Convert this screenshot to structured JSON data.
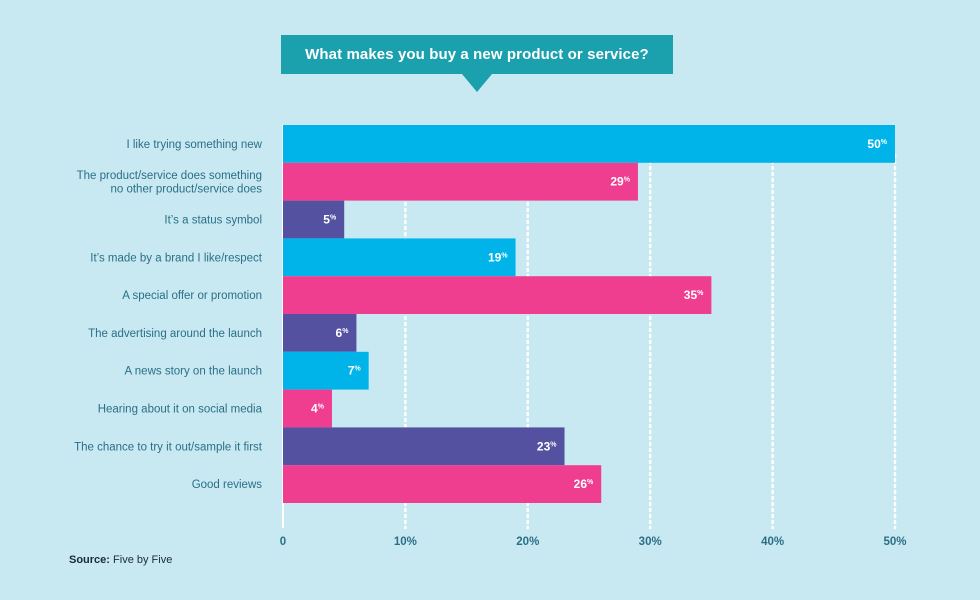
{
  "title": "What makes you buy a new product or service?",
  "source": {
    "label": "Source:",
    "text": "Five by Five"
  },
  "colors": {
    "background": "#c8e9f2",
    "title_bg": "#1ba0ad",
    "axis_text": "#2a6f86",
    "series_blue": "#00b4ea",
    "series_pink": "#ef3e8f",
    "series_purple": "#5451a1",
    "grid": "#ffffff"
  },
  "chart_data": {
    "type": "bar",
    "orientation": "horizontal",
    "categories": [
      "I like trying something new",
      "The product/service does something\nno other product/service does",
      "It’s a status symbol",
      "It’s made by a brand I like/respect",
      "A special offer or promotion",
      "The advertising around the launch",
      "A news story on the launch",
      "Hearing about it on social media",
      "The chance to try it out/sample it first",
      "Good reviews"
    ],
    "values": [
      50,
      29,
      5,
      19,
      35,
      6,
      7,
      4,
      23,
      26
    ],
    "value_labels": [
      "50",
      "29",
      "5",
      "19",
      "35",
      "6",
      "7",
      "4",
      "23",
      "26"
    ],
    "value_suffix": "%",
    "bar_colors": [
      "#00b4ea",
      "#ef3e8f",
      "#5451a1",
      "#00b4ea",
      "#ef3e8f",
      "#5451a1",
      "#00b4ea",
      "#ef3e8f",
      "#5451a1",
      "#ef3e8f"
    ],
    "xlim": [
      0,
      50
    ],
    "xticks": [
      0,
      10,
      20,
      30,
      40,
      50
    ],
    "xtick_labels": [
      "0",
      "10%",
      "20%",
      "30%",
      "40%",
      "50%"
    ],
    "grid": true,
    "grid_style": "dotted-vertical"
  }
}
